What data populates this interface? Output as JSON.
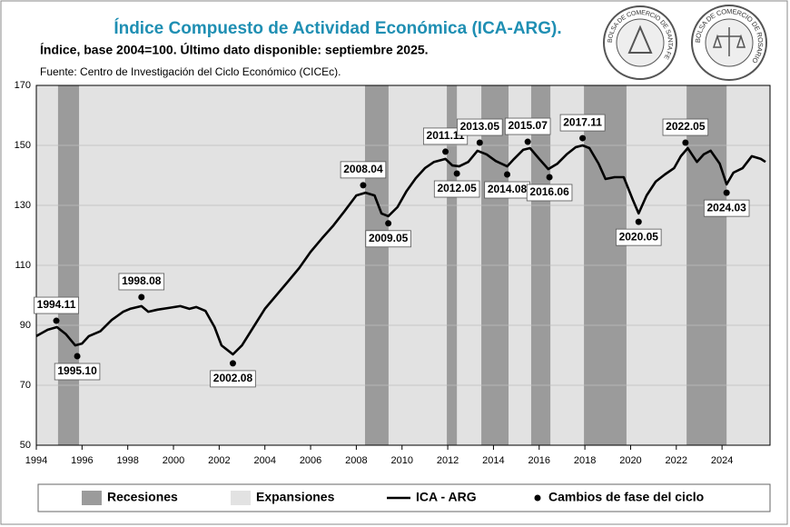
{
  "chart_data": {
    "type": "line",
    "title": "Índice Compuesto de Actividad Económica (ICA-ARG).",
    "subtitle": "Índice, base 2004=100. Último dato disponible: septiembre 2025.",
    "source": "Fuente: Centro de Investigación del Ciclo Económico (CICEc).",
    "logos": [
      "BOLSA DE COMERCIO DE SANTA FE",
      "BOLSA DE COMERCIO DE ROSARIO"
    ],
    "xlim": [
      1994,
      2026.1
    ],
    "xticks": [
      1994,
      1996,
      1998,
      2000,
      2002,
      2004,
      2006,
      2008,
      2010,
      2012,
      2014,
      2016,
      2018,
      2020,
      2022,
      2024
    ],
    "ylim": [
      50,
      170
    ],
    "yticks": [
      50,
      70,
      90,
      110,
      130,
      150,
      170
    ],
    "grid": true,
    "expansions": {
      "name": "Expansiones",
      "color": "#e2e2e2"
    },
    "recessions": {
      "name": "Recesiones",
      "color": "#9b9b9b",
      "spans": [
        [
          1994.95,
          1995.87
        ],
        [
          2008.38,
          2009.41
        ],
        [
          2011.96,
          2012.4
        ],
        [
          2013.47,
          2014.66
        ],
        [
          2015.65,
          2016.49
        ],
        [
          2017.96,
          2019.82
        ],
        [
          2022.45,
          2024.2
        ]
      ]
    },
    "series": [
      {
        "name": "ICA - ARG",
        "color": "#000000",
        "x": [
          1994.0,
          1994.5,
          1994.9,
          1995.3,
          1995.7,
          1996.0,
          1996.3,
          1996.8,
          1997.3,
          1997.8,
          1998.1,
          1998.6,
          1998.9,
          1999.3,
          1999.8,
          2000.3,
          2000.7,
          2001.0,
          2001.4,
          2001.8,
          2002.1,
          2002.6,
          2003.0,
          2003.5,
          2004.0,
          2004.5,
          2005.0,
          2005.5,
          2006.0,
          2006.5,
          2007.0,
          2007.5,
          2008.0,
          2008.4,
          2008.8,
          2009.1,
          2009.4,
          2009.8,
          2010.2,
          2010.6,
          2011.0,
          2011.4,
          2011.9,
          2012.2,
          2012.5,
          2012.9,
          2013.3,
          2013.7,
          2014.1,
          2014.6,
          2014.9,
          2015.3,
          2015.6,
          2016.0,
          2016.4,
          2016.8,
          2017.2,
          2017.6,
          2017.9,
          2018.2,
          2018.6,
          2018.9,
          2019.3,
          2019.7,
          2020.1,
          2020.35,
          2020.7,
          2021.1,
          2021.5,
          2021.9,
          2022.2,
          2022.5,
          2022.9,
          2023.2,
          2023.5,
          2023.9,
          2024.2,
          2024.5,
          2024.9,
          2025.3,
          2025.7,
          2025.9
        ],
        "values": [
          86.4,
          88.5,
          89.4,
          87,
          83.3,
          83.9,
          86.4,
          88,
          91.8,
          94.5,
          95.5,
          96.4,
          94.5,
          95.2,
          95.8,
          96.4,
          95.5,
          96.1,
          94.8,
          89.4,
          83.3,
          80.3,
          83.3,
          89.4,
          95.5,
          100,
          104.5,
          109.1,
          114.5,
          119,
          123.3,
          128.2,
          133.3,
          134.2,
          133.3,
          127.3,
          126.4,
          129.4,
          134.8,
          139,
          142.4,
          144.5,
          145.5,
          143.3,
          143,
          144.5,
          148.2,
          147,
          144.8,
          143,
          145.5,
          148.5,
          149.1,
          145.5,
          142.1,
          143.9,
          147,
          149.4,
          150,
          149.1,
          143.9,
          138.8,
          139.4,
          139.4,
          131.8,
          127.3,
          133.3,
          137.9,
          140.3,
          142.4,
          146.4,
          149.1,
          144.5,
          147,
          148.2,
          143.9,
          137,
          140.9,
          142.4,
          146.4,
          145.5,
          144.5
        ]
      }
    ],
    "turning_points": {
      "name": "Cambios de fase del ciclo",
      "color": "#000000",
      "labels": [
        "1994.11",
        "1995.10",
        "1998.08",
        "2002.08",
        "2008.04",
        "2009.05",
        "2011.11",
        "2012.05",
        "2013.05",
        "2014.08",
        "2015.07",
        "2016.06",
        "2017.11",
        "2020.05",
        "2022.05",
        "2024.03"
      ],
      "x": [
        1994.875,
        1995.79,
        1998.6,
        2002.6,
        2008.3,
        2009.4,
        2011.9,
        2012.4,
        2013.4,
        2014.6,
        2015.5,
        2016.45,
        2017.9,
        2020.35,
        2022.4,
        2024.2
      ],
      "values": [
        91.5,
        79.7,
        99.4,
        77.3,
        136.7,
        124,
        147.9,
        140.6,
        150.9,
        140.3,
        151.2,
        139.4,
        152.4,
        124.5,
        150.9,
        134.2
      ]
    }
  }
}
